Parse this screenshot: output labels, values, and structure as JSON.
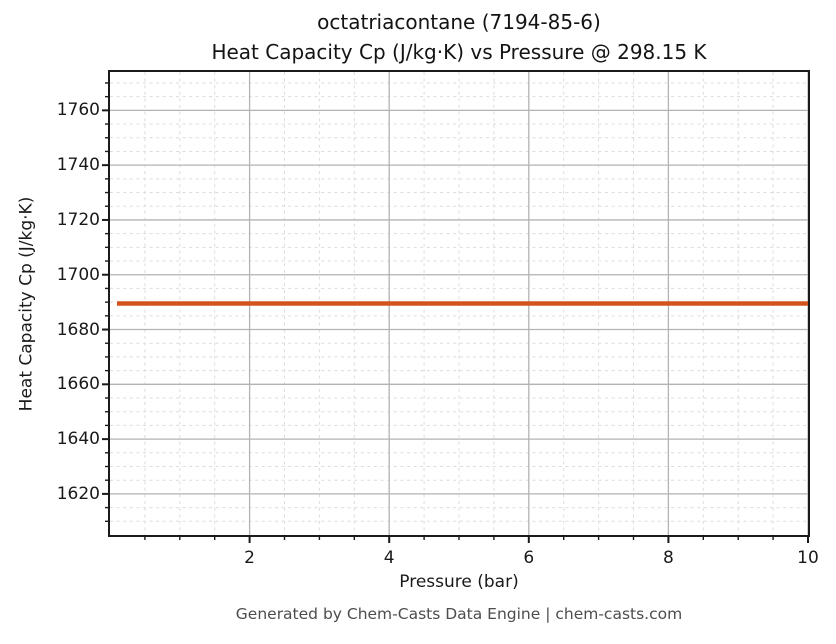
{
  "figure": {
    "footer": "Generated by Chem-Casts Data Engine | chem-casts.com"
  },
  "chart_data": {
    "type": "line",
    "title": "octatriacontane (7194-85-6)",
    "subtitle": "Heat Capacity Cp (J/kg·K) vs Pressure @ 298.15 K",
    "compound": "octatriacontane",
    "cas_number": "7194-85-6",
    "temperature": "298.15 K",
    "xlabel": "Pressure (bar)",
    "ylabel": "Heat Capacity Cp (J/kg·K)",
    "xlim": [
      0,
      10
    ],
    "ylim": [
      1605,
      1774
    ],
    "x_major_ticks": [
      2,
      4,
      6,
      8,
      10
    ],
    "x_minor_step": 0.5,
    "y_major_ticks": [
      1620,
      1640,
      1660,
      1680,
      1700,
      1720,
      1740,
      1760
    ],
    "y_minor_step": 5,
    "grid": true,
    "legend": "none",
    "series": [
      {
        "name": "Heat Capacity Cp",
        "color": "#d4521e",
        "x": [
          0.1,
          10
        ],
        "y": [
          1689.5,
          1689.5
        ]
      }
    ],
    "style": {
      "axis_color": "#1a1a1a",
      "major_grid_color": "#b3b3b3",
      "minor_grid_color": "#dcdcdc",
      "footer_color": "#4d4d4d",
      "background": "#ffffff"
    }
  }
}
